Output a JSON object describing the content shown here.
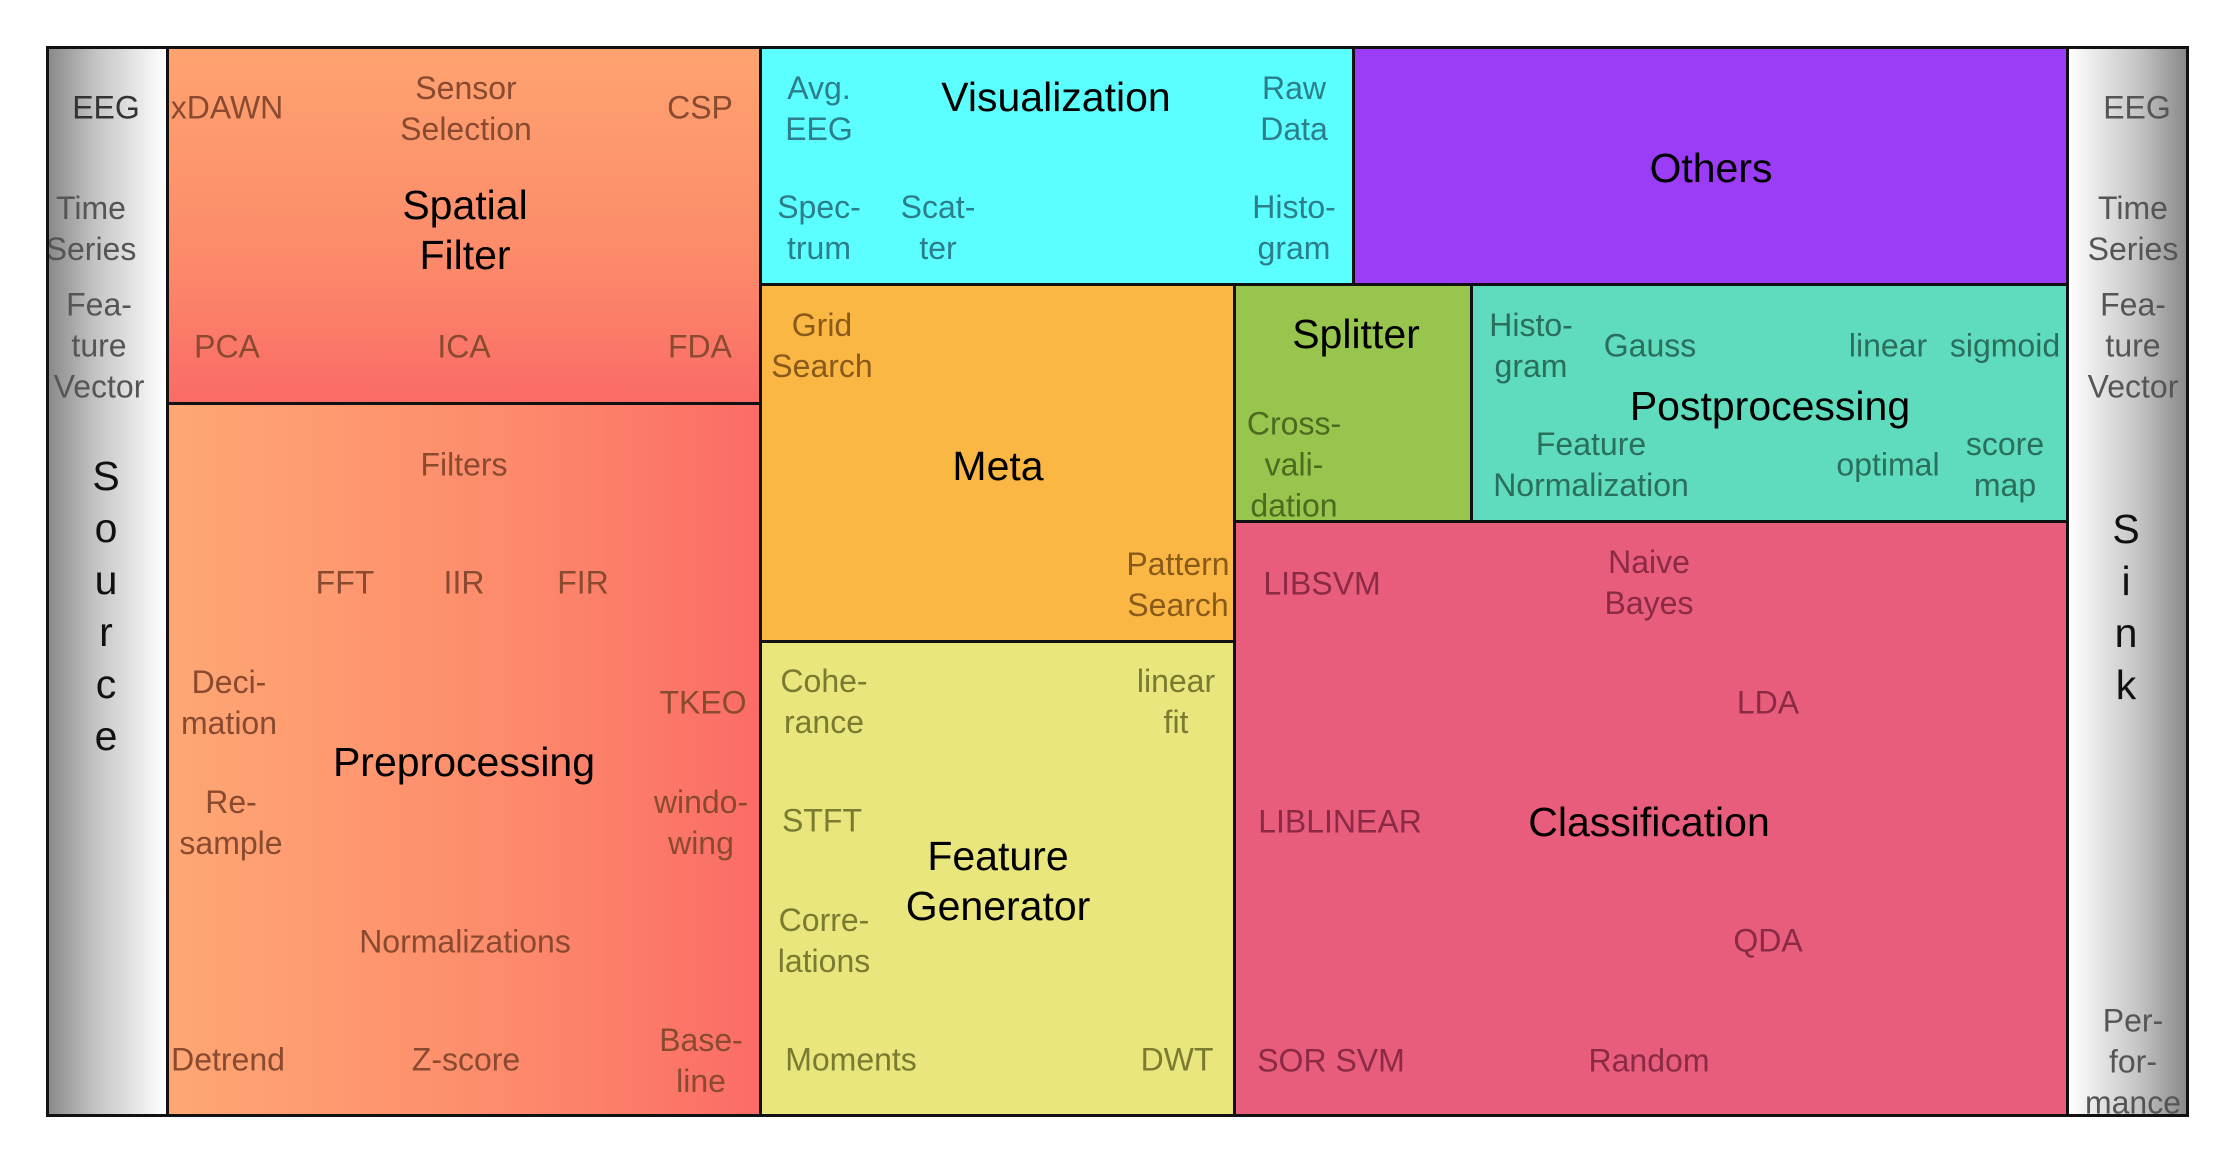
{
  "source": {
    "label": "S\no\nu\nr\nc\ne",
    "items": [
      "EEG",
      "Time\nSeries",
      "Fea-\nture\nVector"
    ]
  },
  "sink": {
    "label": "S\ni\nn\nk",
    "items": [
      "EEG",
      "Time\nSeries",
      "Fea-\nture\nVector",
      "Per-\nfor-\nmance"
    ]
  },
  "spatial_filter": {
    "title": "Spatial\nFilter",
    "color": "#fb8c6c",
    "items": [
      "xDAWN",
      "Sensor\nSelection",
      "CSP",
      "PCA",
      "ICA",
      "FDA"
    ]
  },
  "preprocessing": {
    "title": "Preprocessing",
    "color": "#fd846c",
    "items": [
      "Filters",
      "FFT",
      "IIR",
      "FIR",
      "Deci-\nmation",
      "TKEO",
      "Re-\nsample",
      "windo-\nwing",
      "Normalizations",
      "Detrend",
      "Z-score",
      "Base-\nline"
    ]
  },
  "visualization": {
    "title": "Visualization",
    "color": "#5bffff",
    "items": [
      "Avg.\nEEG",
      "Raw\nData",
      "Spec-\ntrum",
      "Scat-\nter",
      "Histo-\ngram"
    ]
  },
  "others": {
    "title": "Others",
    "color": "#9b3cf7"
  },
  "meta": {
    "title": "Meta",
    "color": "#fbb744",
    "items": [
      "Grid\nSearch",
      "Pattern\nSearch"
    ]
  },
  "splitter": {
    "title": "Splitter",
    "color": "#97c54d",
    "items": [
      "Cross-\nvali-\ndation"
    ]
  },
  "postprocessing": {
    "title": "Postprocessing",
    "color": "#5fdbbd",
    "items": [
      "Histo-\ngram",
      "Gauss",
      "linear",
      "sigmoid",
      "Feature\nNormalization",
      "optimal",
      "score\nmap"
    ]
  },
  "feature_generator": {
    "title": "Feature\nGenerator",
    "color": "#e8e67c",
    "items": [
      "Cohe-\nrance",
      "linear\nfit",
      "STFT",
      "Corre-\nlations",
      "Moments",
      "DWT"
    ]
  },
  "classification": {
    "title": "Classification",
    "color": "#e85c7c",
    "items": [
      "LIBSVM",
      "Naive\nBayes",
      "LDA",
      "LIBLINEAR",
      "QDA",
      "SOR SVM",
      "Random"
    ]
  }
}
